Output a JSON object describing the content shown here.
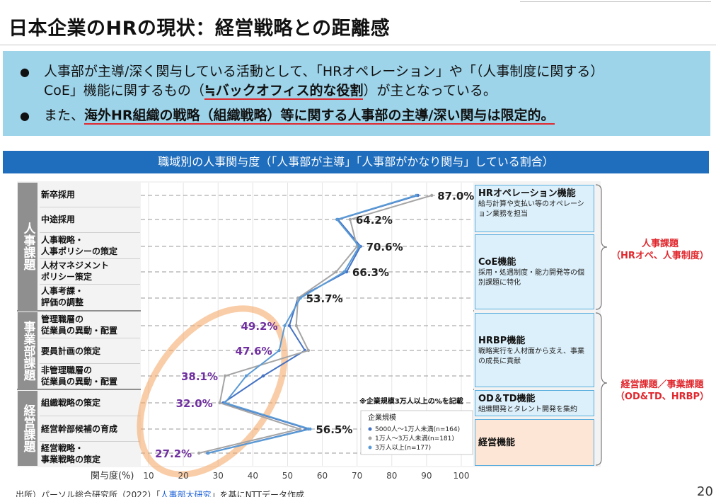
{
  "page": {
    "title": "日本企業のHRの現状：経営戦略との距離感",
    "page_number": "20"
  },
  "summary": {
    "b1_l1": "人事部が主導/深く関与している活動として、「HRオペレーション」や「（人事制度に関する）",
    "b1_l2_a": "CoE」機能に関するもの（",
    "b1_l2_b": "≒バックオフィス的な役割",
    "b1_l2_c": "）が主となっている。",
    "b2_a": "また、",
    "b2_b": "海外HR組織の戦略（組織戦略）等に関する人事部の主導/深い関与は限定的。"
  },
  "chart_header": "職域別の人事関与度（「人事部が主導」「人事部がかなり関与」している割合）",
  "groups": [
    {
      "label": "人事課題"
    },
    {
      "label": "事業部課題"
    },
    {
      "label": "経営課題"
    }
  ],
  "functions": [
    {
      "title": "HRオペレーション機能",
      "desc": "給与計算や支払い等のオペレーション業務を担当"
    },
    {
      "title": "CoE機能",
      "desc": "採用・処遇制度・能力開発等の個別課題に特化"
    },
    {
      "title": "HRBP機能",
      "desc": "戦略実行を人材面から支え、事業の成長に貢献"
    },
    {
      "title": "OD＆TD機能",
      "desc": "組織開発とタレント開発を集約"
    },
    {
      "title": "経営機能",
      "desc": ""
    }
  ],
  "right_labels": [
    {
      "l1": "人事課題",
      "l2": "（HRオペ、人事制度）"
    },
    {
      "l1": "経営課題／事業課題",
      "l2": "（OD&TD、HRBP）"
    }
  ],
  "note": "※企業規模3万人以上の%を記載",
  "source": {
    "prefix": "出所）パーソル総合研究所（2022）「",
    "link": "人事部大研究",
    "suffix": "」を基にNTTデータ作成"
  },
  "colors": {
    "series1": "#4472c4",
    "series2": "#a5a5a5",
    "series3": "#5b9bd5",
    "purple": "#7030a0",
    "highlight": "#f4a460",
    "accent_red": "#e0282e",
    "header_blue": "#1f6dbd",
    "summary_bg": "#9dd4ea"
  },
  "chart_data": {
    "type": "line",
    "orientation": "horizontal",
    "categories": [
      "新卒採用",
      "中途採用",
      "人事戦略・\n人事ポリシーの策定",
      "人材マネジメント\nポリシー策定",
      "人事考課・\n評価の調整",
      "管理職層の\n従業員の異動・配置",
      "要員計画の策定",
      "非管理職層の\n従業員の異動・配置",
      "組織戦略の策定",
      "経営幹部候補の育成",
      "経営戦略・\n事業戦略の策定"
    ],
    "category_group": [
      0,
      0,
      0,
      0,
      0,
      1,
      1,
      1,
      2,
      2,
      2
    ],
    "series": [
      {
        "name": "5000人～1万人未満(n=164)",
        "values": [
          87.5,
          64.5,
          71.0,
          67.0,
          53.0,
          50.5,
          55.0,
          43.0,
          31.5,
          56.0,
          27.0
        ]
      },
      {
        "name": "1万人～3万人未満(n=181)",
        "values": [
          91.5,
          68.0,
          70.0,
          64.0,
          53.0,
          52.5,
          56.0,
          32.0,
          30.5,
          53.5,
          24.5
        ]
      },
      {
        "name": "3万人以上(n=177)",
        "values": [
          87.0,
          64.2,
          70.6,
          66.3,
          53.7,
          49.2,
          47.6,
          38.1,
          32.0,
          56.5,
          27.2
        ]
      }
    ],
    "data_labels": [
      "87.0%",
      "64.2%",
      "70.6%",
      "66.3%",
      "53.7%",
      "49.2%",
      "47.6%",
      "38.1%",
      "32.0%",
      "56.5%",
      "27.2%"
    ],
    "label_purple": [
      false,
      false,
      false,
      false,
      false,
      true,
      true,
      true,
      true,
      false,
      true
    ],
    "x_ticks": [
      "10",
      "20",
      "30",
      "40",
      "50",
      "60",
      "70",
      "80",
      "90",
      "100"
    ],
    "xlabel": "関与度(%)",
    "xlim": [
      10,
      100
    ],
    "legend_title": "企業規模",
    "legend_position": "bottom-right"
  }
}
